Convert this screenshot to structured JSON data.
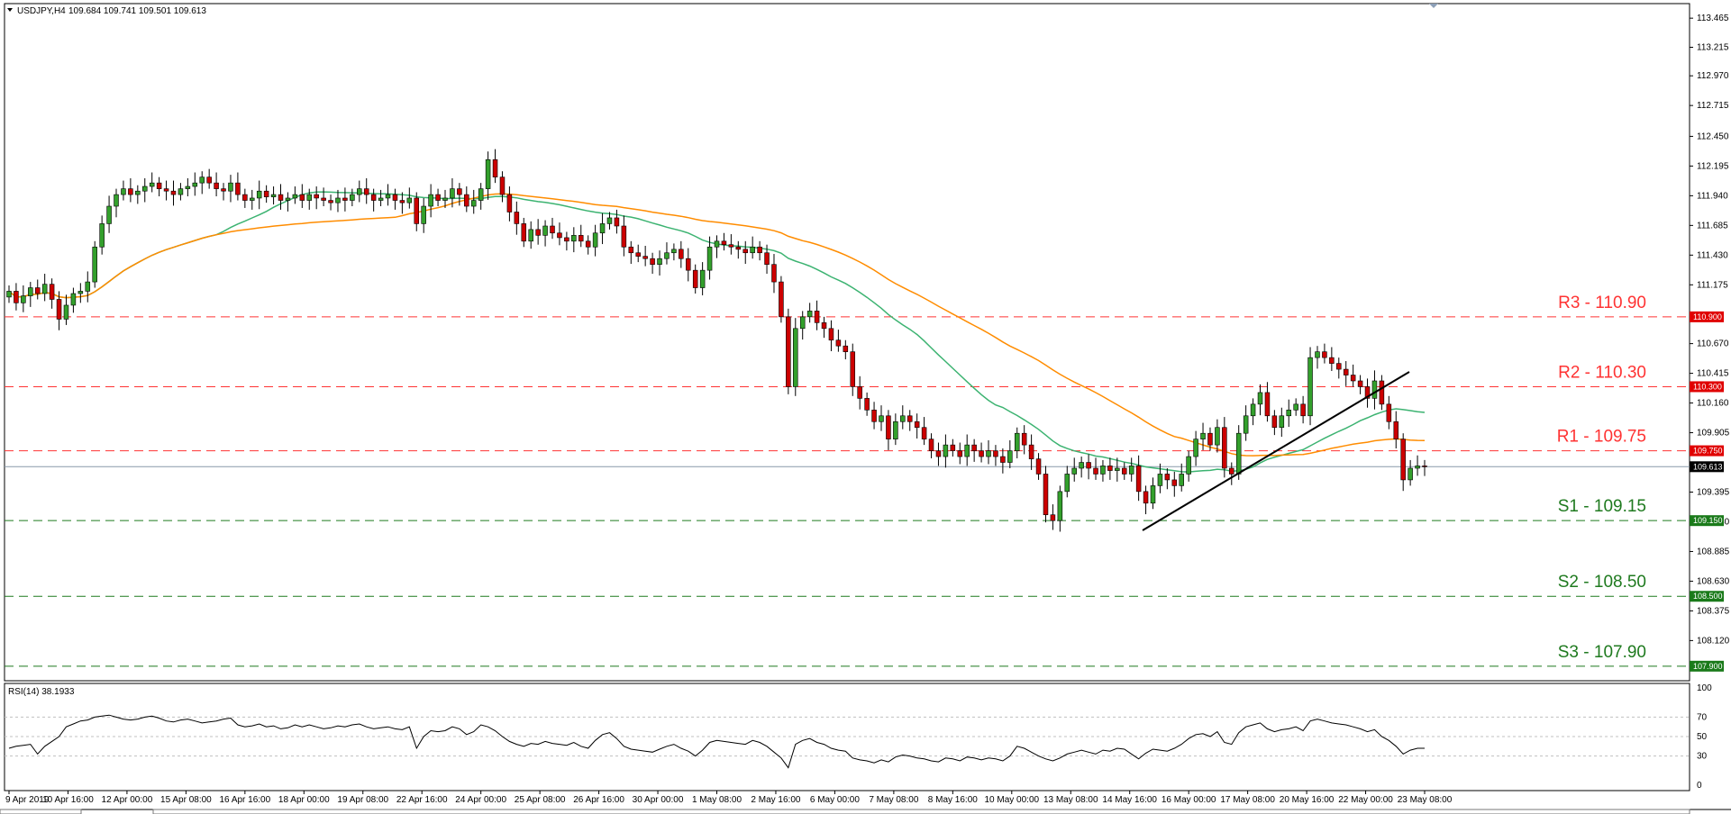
{
  "header": {
    "symbol": "USDJPY,H4",
    "ohlc": "109.684 109.741 109.501 109.613"
  },
  "rsi_header": "RSI(14) 38.1933",
  "colors": {
    "bull": "#33a02c",
    "bear": "#cc0000",
    "ma_fast": "#3cb371",
    "ma_slow": "#ff8c00",
    "resistance": "#ff3333",
    "support": "#1f7a1f",
    "grid": "#c0c0c0"
  },
  "chart_data": {
    "type": "candlestick",
    "price_axis": {
      "ylim": [
        107.775,
        113.59
      ],
      "ticks": [
        "113.465",
        "113.215",
        "112.970",
        "112.715",
        "112.450",
        "112.195",
        "111.940",
        "111.685",
        "111.430",
        "111.175",
        "110.670",
        "110.415",
        "110.160",
        "109.905",
        "109.395",
        "109.140",
        "108.885",
        "108.630",
        "108.375",
        "108.120"
      ]
    },
    "x_axis_labels": [
      "9 Apr 2019",
      "10 Apr 16:00",
      "12 Apr 00:00",
      "15 Apr 08:00",
      "16 Apr 16:00",
      "18 Apr 00:00",
      "19 Apr 08:00",
      "22 Apr 16:00",
      "24 Apr 00:00",
      "25 Apr 08:00",
      "26 Apr 16:00",
      "30 Apr 00:00",
      "1 May 08:00",
      "2 May 16:00",
      "6 May 00:00",
      "7 May 08:00",
      "8 May 16:00",
      "10 May 00:00",
      "13 May 08:00",
      "14 May 16:00",
      "16 May 00:00",
      "17 May 08:00",
      "20 May 16:00",
      "22 May 00:00",
      "23 May 08:00"
    ],
    "closes": [
      111.12,
      111.02,
      111.08,
      111.15,
      111.1,
      111.18,
      111.05,
      110.88,
      111.0,
      111.1,
      111.12,
      111.2,
      111.5,
      111.7,
      111.85,
      111.95,
      112.0,
      111.95,
      111.98,
      112.02,
      112.05,
      112.0,
      111.98,
      111.95,
      112.0,
      112.02,
      112.05,
      112.1,
      112.05,
      112.0,
      111.98,
      112.05,
      111.95,
      111.9,
      111.92,
      111.98,
      111.93,
      111.95,
      111.9,
      111.92,
      111.95,
      111.9,
      111.95,
      111.92,
      111.9,
      111.88,
      111.92,
      111.9,
      111.95,
      112.0,
      111.95,
      111.9,
      111.92,
      111.95,
      111.9,
      111.88,
      111.92,
      111.7,
      111.85,
      111.95,
      111.9,
      111.92,
      112.0,
      111.95,
      111.85,
      111.9,
      112.0,
      112.25,
      112.1,
      111.95,
      111.8,
      111.7,
      111.55,
      111.65,
      111.6,
      111.68,
      111.62,
      111.58,
      111.55,
      111.6,
      111.55,
      111.5,
      111.62,
      111.7,
      111.75,
      111.68,
      111.5,
      111.45,
      111.42,
      111.4,
      111.35,
      111.4,
      111.45,
      111.48,
      111.4,
      111.3,
      111.15,
      111.3,
      111.5,
      111.55,
      111.52,
      111.5,
      111.48,
      111.45,
      111.5,
      111.45,
      111.35,
      111.2,
      110.9,
      110.3,
      110.8,
      110.9,
      110.95,
      110.85,
      110.8,
      110.7,
      110.65,
      110.6,
      110.3,
      110.2,
      110.1,
      110.0,
      110.05,
      109.85,
      110.0,
      110.05,
      110.0,
      109.95,
      109.85,
      109.75,
      109.7,
      109.8,
      109.75,
      109.7,
      109.8,
      109.75,
      109.7,
      109.75,
      109.7,
      109.65,
      109.75,
      109.9,
      109.8,
      109.68,
      109.55,
      109.2,
      109.15,
      109.4,
      109.55,
      109.6,
      109.65,
      109.6,
      109.55,
      109.62,
      109.58,
      109.6,
      109.55,
      109.62,
      109.4,
      109.3,
      109.45,
      109.55,
      109.5,
      109.45,
      109.55,
      109.7,
      109.85,
      109.9,
      109.8,
      109.95,
      109.6,
      109.55,
      109.9,
      110.05,
      110.15,
      110.25,
      110.05,
      109.95,
      110.05,
      110.1,
      110.15,
      110.05,
      110.55,
      110.6,
      110.55,
      110.5,
      110.45,
      110.4,
      110.35,
      110.3,
      110.2,
      110.35,
      110.15,
      110.0,
      109.85,
      109.5,
      109.6,
      109.62,
      109.613
    ]
  },
  "levels": [
    {
      "label": "R3 - 110.90",
      "value": 110.9,
      "badge": "110.900",
      "kind": "resistance"
    },
    {
      "label": "R2 - 110.30",
      "value": 110.3,
      "badge": "110.300",
      "kind": "resistance"
    },
    {
      "label": "R1 - 109.75",
      "value": 109.75,
      "badge": "109.750",
      "kind": "resistance"
    },
    {
      "label": "S1 - 109.15",
      "value": 109.15,
      "badge": "109.150",
      "kind": "support"
    },
    {
      "label": "S2 - 108.50",
      "value": 108.5,
      "badge": "108.500",
      "kind": "support"
    },
    {
      "label": "S3 - 107.90",
      "value": 107.9,
      "badge": "107.900",
      "kind": "support"
    }
  ],
  "current_price": {
    "value": 109.613,
    "badge": "109.613"
  },
  "rsi": {
    "ylim": [
      0,
      100
    ],
    "ticks": [
      "100",
      "70",
      "50",
      "30",
      "0"
    ],
    "values": [
      38,
      40,
      41,
      42,
      32,
      40,
      45,
      50,
      60,
      63,
      66,
      67,
      70,
      71,
      72,
      70,
      68,
      67,
      68,
      70,
      71,
      69,
      66,
      65,
      67,
      68,
      66,
      64,
      65,
      66,
      68,
      69,
      62,
      60,
      61,
      63,
      60,
      61,
      58,
      59,
      62,
      60,
      62,
      60,
      58,
      59,
      61,
      60,
      62,
      63,
      60,
      58,
      59,
      60,
      58,
      57,
      60,
      38,
      50,
      56,
      55,
      56,
      60,
      58,
      52,
      55,
      62,
      60,
      56,
      50,
      45,
      42,
      40,
      43,
      42,
      45,
      43,
      42,
      41,
      44,
      40,
      38,
      46,
      52,
      54,
      48,
      40,
      37,
      36,
      35,
      34,
      37,
      40,
      42,
      38,
      35,
      30,
      36,
      44,
      46,
      45,
      44,
      43,
      42,
      46,
      44,
      40,
      34,
      28,
      18,
      42,
      46,
      48,
      44,
      42,
      38,
      36,
      35,
      28,
      26,
      25,
      23,
      26,
      24,
      29,
      31,
      30,
      28,
      27,
      25,
      24,
      28,
      27,
      25,
      29,
      28,
      26,
      28,
      27,
      25,
      30,
      40,
      38,
      34,
      30,
      27,
      25,
      28,
      32,
      34,
      36,
      34,
      32,
      36,
      35,
      38,
      37,
      32,
      27,
      33,
      37,
      36,
      35,
      38,
      42,
      48,
      52,
      53,
      50,
      55,
      44,
      42,
      54,
      60,
      62,
      64,
      58,
      55,
      57,
      58,
      60,
      56,
      66,
      68,
      66,
      64,
      63,
      62,
      60,
      58,
      55,
      57,
      50,
      46,
      40,
      32,
      36,
      38,
      38
    ]
  }
}
